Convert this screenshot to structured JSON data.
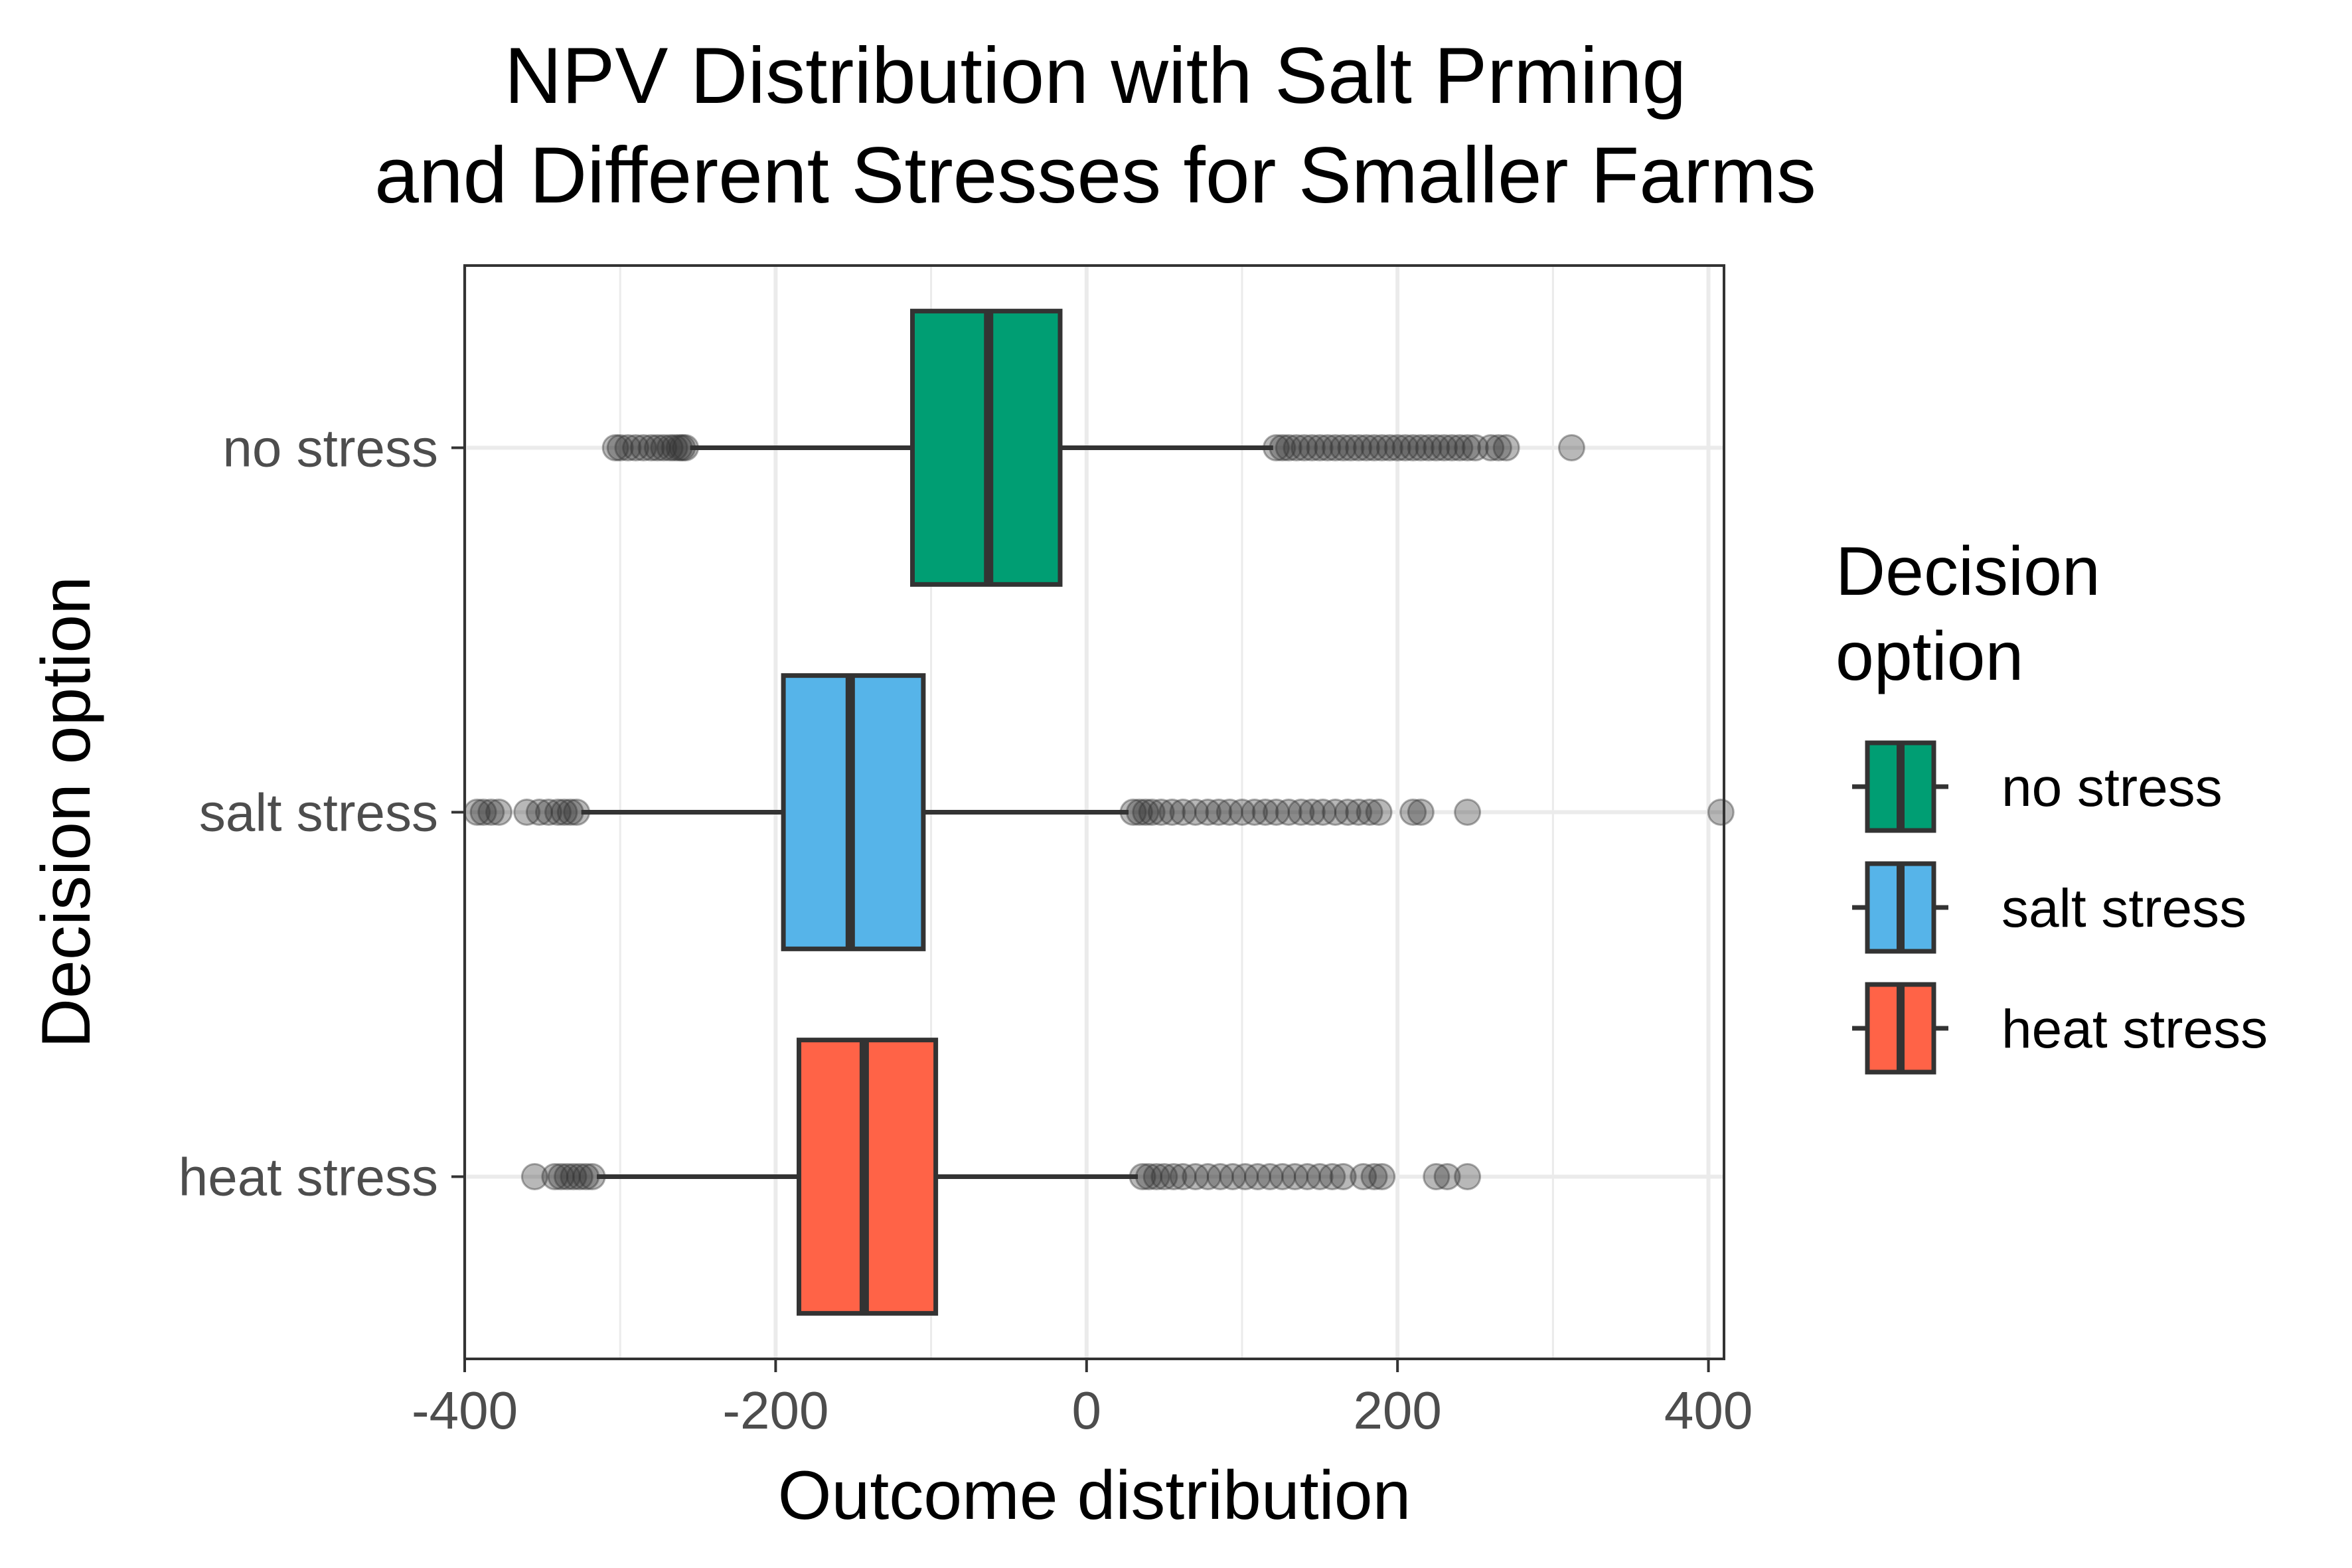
{
  "chart_data": {
    "type": "boxplot",
    "title": [
      "NPV Distribution with Salt Prming",
      "and Different Stresses for Smaller Farms"
    ],
    "xlabel": "Outcome distribution",
    "ylabel": "Decision option",
    "xlim": [
      -400,
      410
    ],
    "x_ticks": [
      -400,
      -200,
      0,
      200,
      400
    ],
    "x_tick_labels": [
      "-400",
      "-200",
      "0",
      "200",
      "400"
    ],
    "grid": true,
    "orientation": "horizontal",
    "legend": {
      "title": [
        "Decision",
        "option"
      ],
      "placement": "right",
      "entries": [
        "no stress",
        "salt stress",
        "heat stress"
      ]
    },
    "series": [
      {
        "name": "no stress",
        "color": "#009E73",
        "whisker_low": -255,
        "q1": -112,
        "median": -63,
        "q3": -17,
        "whisker_high": 120,
        "outliers_low": [
          -303,
          -300,
          -295,
          -290,
          -285,
          -280,
          -276,
          -272,
          -268,
          -265,
          -262,
          -260,
          -258
        ],
        "outliers_high": [
          122,
          126,
          130,
          135,
          140,
          145,
          150,
          155,
          160,
          165,
          170,
          175,
          180,
          185,
          190,
          195,
          200,
          205,
          210,
          215,
          220,
          225,
          230,
          235,
          240,
          245,
          250,
          260,
          265,
          270,
          312
        ]
      },
      {
        "name": "salt stress",
        "color": "#56B4E9",
        "whisker_low": -325,
        "q1": -195,
        "median": -152,
        "q3": -105,
        "whisker_high": 27,
        "outliers_low": [
          -392,
          -388,
          -383,
          -378,
          -360,
          -352,
          -346,
          -340,
          -336,
          -332,
          -328
        ],
        "outliers_high": [
          30,
          34,
          38,
          42,
          48,
          55,
          62,
          70,
          78,
          85,
          92,
          100,
          108,
          115,
          122,
          130,
          138,
          145,
          152,
          160,
          168,
          175,
          182,
          188,
          210,
          215,
          245,
          408
        ]
      },
      {
        "name": "heat stress",
        "color": "#FF6347",
        "whisker_low": -315,
        "q1": -185,
        "median": -143,
        "q3": -97,
        "whisker_high": 33,
        "outliers_low": [
          -355,
          -342,
          -338,
          -334,
          -330,
          -326,
          -322,
          -318
        ],
        "outliers_high": [
          36,
          40,
          45,
          50,
          56,
          62,
          70,
          78,
          86,
          94,
          102,
          110,
          118,
          126,
          134,
          142,
          150,
          158,
          165,
          178,
          185,
          190,
          225,
          232,
          245
        ]
      }
    ]
  }
}
